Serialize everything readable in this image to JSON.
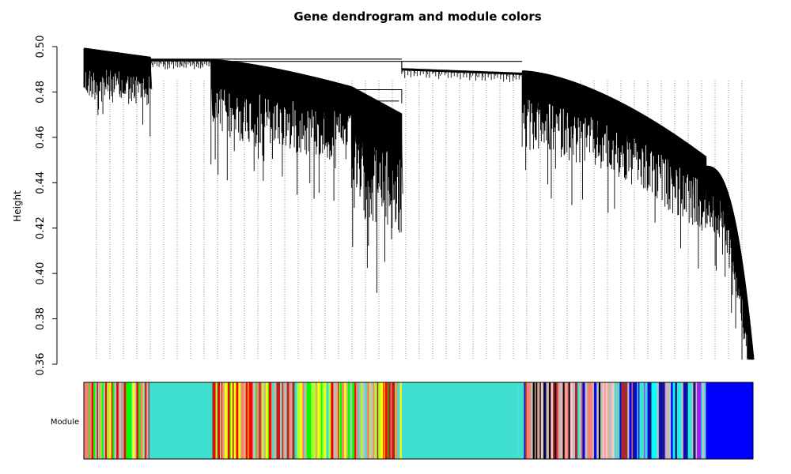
{
  "chart_data": {
    "type": "dendrogram",
    "title": "Gene dendrogram and module colors",
    "ylabel": "Height",
    "ylim": [
      0.36,
      0.5
    ],
    "y_ticks": [
      "0.36",
      "0.38",
      "0.40",
      "0.42",
      "0.44",
      "0.46",
      "0.48",
      "0.50"
    ],
    "y_tick_values": [
      0.36,
      0.38,
      0.4,
      0.42,
      0.44,
      0.46,
      0.48,
      0.5
    ],
    "color_row_label": "Module",
    "module_colors": {
      "turquoise": "#40e0d0",
      "blue": "#0000ff",
      "yellow": "#ffff00",
      "greenyellow": "#adff2f",
      "brown": "#a52a2a",
      "magenta": "#ff00ff",
      "grey": "#bebebe",
      "black": "#000000",
      "red": "#ff0000",
      "green": "#00ff00",
      "tan": "#d2b48c",
      "salmon": "#fa8072",
      "pink": "#ffc0cb",
      "purple": "#a020f0",
      "cyan": "#00ffff",
      "midnightblue": "#191970"
    },
    "module_segments": [
      {
        "from": 0.0,
        "to": 0.098,
        "module": "mixed-yellow"
      },
      {
        "from": 0.098,
        "to": 0.192,
        "module": "turquoise"
      },
      {
        "from": 0.192,
        "to": 0.475,
        "module": "mixed-yellow"
      },
      {
        "from": 0.475,
        "to": 0.65,
        "module": "turquoise"
      },
      {
        "from": 0.65,
        "to": 0.655,
        "module": "mixed-dark"
      },
      {
        "from": 0.655,
        "to": 0.82,
        "module": "mixed-blue"
      },
      {
        "from": 0.82,
        "to": 0.93,
        "module": "mixed-blue2"
      },
      {
        "from": 0.93,
        "to": 1.0,
        "module": "blue"
      }
    ],
    "main_branch_heights": {
      "root": 0.493,
      "left_cluster_top": 0.495,
      "middle_cluster_top": 0.494,
      "right_cluster_top": 0.49,
      "min_leaf": 0.362
    }
  }
}
